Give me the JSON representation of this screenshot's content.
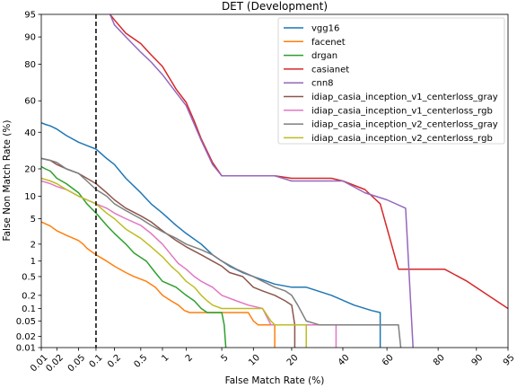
{
  "chart_data": {
    "type": "line",
    "title": "DET (Development)",
    "xlabel": "False Match Rate (%)",
    "ylabel": "False Non Match Rate (%)",
    "x_scale": "probit",
    "y_scale": "probit",
    "xlim": [
      0.01,
      95
    ],
    "ylim": [
      0.01,
      95
    ],
    "x_ticks": [
      0.01,
      0.02,
      0.05,
      0.1,
      0.2,
      0.5,
      1,
      2,
      5,
      10,
      20,
      40,
      60,
      80,
      90,
      95
    ],
    "x_tick_labels": [
      "0.01",
      "0.02",
      "0.05",
      "0.1",
      "0.2",
      "0.5",
      "1",
      "2",
      "5",
      "10",
      "20",
      "40",
      "60",
      "80",
      "90",
      "95"
    ],
    "y_ticks": [
      0.01,
      0.02,
      0.05,
      0.1,
      0.2,
      0.5,
      1,
      2,
      5,
      10,
      20,
      40,
      60,
      80,
      90,
      95
    ],
    "y_tick_labels": [
      "0.01",
      "0.02",
      "0.05",
      "0.1",
      "0.2",
      "0.5",
      "1",
      "2",
      "5",
      "10",
      "20",
      "40",
      "60",
      "80",
      "90",
      "95"
    ],
    "grid": false,
    "legend_position": "top-right",
    "reference_line": {
      "x": 0.1,
      "style": "dashed",
      "color": "#000000"
    },
    "series": [
      {
        "name": "vgg16",
        "color": "#1f77b4",
        "points": [
          [
            0.01,
            46
          ],
          [
            0.012,
            45
          ],
          [
            0.015,
            44
          ],
          [
            0.02,
            42
          ],
          [
            0.03,
            38
          ],
          [
            0.05,
            34
          ],
          [
            0.07,
            32
          ],
          [
            0.1,
            30
          ],
          [
            0.15,
            25
          ],
          [
            0.2,
            22
          ],
          [
            0.3,
            16
          ],
          [
            0.5,
            11
          ],
          [
            0.7,
            8
          ],
          [
            1,
            6
          ],
          [
            1.5,
            4
          ],
          [
            2,
            3
          ],
          [
            3,
            2
          ],
          [
            4,
            1.3
          ],
          [
            6,
            0.8
          ],
          [
            8,
            0.6
          ],
          [
            10,
            0.5
          ],
          [
            15,
            0.35
          ],
          [
            20,
            0.3
          ],
          [
            25,
            0.3
          ],
          [
            35,
            0.2
          ],
          [
            45,
            0.12
          ],
          [
            53,
            0.09
          ],
          [
            57,
            0.08
          ],
          [
            57,
            0.01
          ]
        ]
      },
      {
        "name": "facenet",
        "color": "#ff7f0e",
        "points": [
          [
            0.01,
            4.5
          ],
          [
            0.015,
            3.9
          ],
          [
            0.02,
            3.3
          ],
          [
            0.03,
            2.8
          ],
          [
            0.05,
            2.3
          ],
          [
            0.06,
            2
          ],
          [
            0.07,
            1.7
          ],
          [
            0.1,
            1.3
          ],
          [
            0.15,
            1
          ],
          [
            0.2,
            0.8
          ],
          [
            0.3,
            0.6
          ],
          [
            0.4,
            0.5
          ],
          [
            0.6,
            0.4
          ],
          [
            0.8,
            0.3
          ],
          [
            1,
            0.2
          ],
          [
            1.3,
            0.15
          ],
          [
            1.6,
            0.12
          ],
          [
            1.9,
            0.09
          ],
          [
            2.2,
            0.08
          ],
          [
            5,
            0.08
          ],
          [
            9,
            0.08
          ],
          [
            10,
            0.05
          ],
          [
            11,
            0.04
          ],
          [
            15,
            0.04
          ],
          [
            15,
            0.01
          ]
        ]
      },
      {
        "name": "drgan",
        "color": "#2ca02c",
        "points": [
          [
            0.01,
            21
          ],
          [
            0.012,
            20
          ],
          [
            0.015,
            19
          ],
          [
            0.02,
            16
          ],
          [
            0.03,
            14
          ],
          [
            0.05,
            11
          ],
          [
            0.07,
            8
          ],
          [
            0.1,
            6
          ],
          [
            0.15,
            4
          ],
          [
            0.2,
            3
          ],
          [
            0.3,
            2
          ],
          [
            0.4,
            1.4
          ],
          [
            0.6,
            1
          ],
          [
            0.8,
            0.6
          ],
          [
            1,
            0.4
          ],
          [
            1.5,
            0.3
          ],
          [
            2,
            0.2
          ],
          [
            2.5,
            0.15
          ],
          [
            3,
            0.1
          ],
          [
            3.5,
            0.08
          ],
          [
            5,
            0.08
          ],
          [
            5.3,
            0.04
          ],
          [
            5.5,
            0.01
          ]
        ]
      },
      {
        "name": "casianet",
        "color": "#d62728",
        "points": [
          [
            0.17,
            95
          ],
          [
            0.2,
            94
          ],
          [
            0.3,
            91
          ],
          [
            0.5,
            88
          ],
          [
            0.7,
            84
          ],
          [
            1,
            79
          ],
          [
            1.5,
            67
          ],
          [
            2,
            59
          ],
          [
            2.5,
            47
          ],
          [
            3,
            36
          ],
          [
            4,
            23
          ],
          [
            5,
            17
          ],
          [
            8,
            17
          ],
          [
            15,
            17
          ],
          [
            20,
            16
          ],
          [
            30,
            16
          ],
          [
            35,
            16
          ],
          [
            40,
            15
          ],
          [
            50,
            12
          ],
          [
            57,
            8
          ],
          [
            65,
            0.7
          ],
          [
            75,
            0.7
          ],
          [
            82,
            0.7
          ],
          [
            88,
            0.4
          ],
          [
            95,
            0.1
          ]
        ]
      },
      {
        "name": "cnn8",
        "color": "#9467bd",
        "points": [
          [
            0.17,
            95
          ],
          [
            0.2,
            93
          ],
          [
            0.3,
            90
          ],
          [
            0.5,
            85
          ],
          [
            0.7,
            81
          ],
          [
            1,
            75
          ],
          [
            1.5,
            65
          ],
          [
            2,
            57
          ],
          [
            2.5,
            45
          ],
          [
            3,
            35
          ],
          [
            4,
            22
          ],
          [
            5,
            17
          ],
          [
            8,
            17
          ],
          [
            15,
            17
          ],
          [
            20,
            15
          ],
          [
            30,
            15
          ],
          [
            40,
            15
          ],
          [
            50,
            11
          ],
          [
            60,
            9
          ],
          [
            68,
            7
          ],
          [
            71,
            0.01
          ]
        ]
      },
      {
        "name": "idiap_casia_inception_v1_centerloss_gray",
        "color": "#8c564b",
        "points": [
          [
            0.01,
            25
          ],
          [
            0.015,
            24
          ],
          [
            0.02,
            22
          ],
          [
            0.03,
            20
          ],
          [
            0.05,
            18
          ],
          [
            0.07,
            16
          ],
          [
            0.1,
            14
          ],
          [
            0.15,
            11
          ],
          [
            0.2,
            9
          ],
          [
            0.3,
            7
          ],
          [
            0.5,
            5.5
          ],
          [
            0.7,
            4.5
          ],
          [
            1,
            3.3
          ],
          [
            1.5,
            2.3
          ],
          [
            2,
            1.8
          ],
          [
            3,
            1.3
          ],
          [
            4,
            1
          ],
          [
            5,
            0.8
          ],
          [
            6,
            0.6
          ],
          [
            8,
            0.5
          ],
          [
            10,
            0.3
          ],
          [
            12,
            0.25
          ],
          [
            15,
            0.2
          ],
          [
            18,
            0.15
          ],
          [
            20,
            0.12
          ],
          [
            21,
            0.04
          ],
          [
            21,
            0.01
          ]
        ]
      },
      {
        "name": "idiap_casia_inception_v1_centerloss_rgb",
        "color": "#e377c2",
        "points": [
          [
            0.01,
            15
          ],
          [
            0.015,
            14
          ],
          [
            0.02,
            13
          ],
          [
            0.03,
            12
          ],
          [
            0.05,
            10
          ],
          [
            0.07,
            9
          ],
          [
            0.1,
            8
          ],
          [
            0.15,
            7
          ],
          [
            0.2,
            6
          ],
          [
            0.3,
            5
          ],
          [
            0.5,
            4
          ],
          [
            0.7,
            3
          ],
          [
            1,
            2
          ],
          [
            1.3,
            1.3
          ],
          [
            1.6,
            0.9
          ],
          [
            2,
            0.7
          ],
          [
            2.5,
            0.5
          ],
          [
            3,
            0.4
          ],
          [
            4,
            0.3
          ],
          [
            5,
            0.2
          ],
          [
            7,
            0.15
          ],
          [
            9,
            0.12
          ],
          [
            12,
            0.1
          ],
          [
            14,
            0.04
          ],
          [
            20,
            0.04
          ],
          [
            35,
            0.04
          ],
          [
            37,
            0.04
          ],
          [
            37,
            0.01
          ]
        ]
      },
      {
        "name": "idiap_casia_inception_v2_centerloss_gray",
        "color": "#7f7f7f",
        "points": [
          [
            0.01,
            25
          ],
          [
            0.015,
            24
          ],
          [
            0.02,
            23
          ],
          [
            0.03,
            20
          ],
          [
            0.05,
            18
          ],
          [
            0.07,
            15
          ],
          [
            0.1,
            12
          ],
          [
            0.15,
            10
          ],
          [
            0.2,
            8
          ],
          [
            0.3,
            6.5
          ],
          [
            0.5,
            5
          ],
          [
            0.7,
            4
          ],
          [
            1,
            3.2
          ],
          [
            1.5,
            2.5
          ],
          [
            2,
            2
          ],
          [
            3,
            1.6
          ],
          [
            4,
            1.3
          ],
          [
            5,
            1
          ],
          [
            7,
            0.7
          ],
          [
            10,
            0.5
          ],
          [
            12,
            0.4
          ],
          [
            15,
            0.3
          ],
          [
            18,
            0.25
          ],
          [
            20,
            0.2
          ],
          [
            22,
            0.12
          ],
          [
            25,
            0.05
          ],
          [
            30,
            0.04
          ],
          [
            50,
            0.04
          ],
          [
            60,
            0.04
          ],
          [
            65,
            0.04
          ],
          [
            66,
            0.01
          ]
        ]
      },
      {
        "name": "idiap_casia_inception_v2_centerloss_rgb",
        "color": "#bcbd22",
        "points": [
          [
            0.01,
            16
          ],
          [
            0.015,
            15
          ],
          [
            0.02,
            14
          ],
          [
            0.03,
            12
          ],
          [
            0.05,
            10
          ],
          [
            0.07,
            9
          ],
          [
            0.1,
            8
          ],
          [
            0.15,
            6
          ],
          [
            0.2,
            5
          ],
          [
            0.3,
            3.5
          ],
          [
            0.5,
            2.5
          ],
          [
            0.7,
            1.8
          ],
          [
            1,
            1.2
          ],
          [
            1.3,
            0.8
          ],
          [
            1.6,
            0.6
          ],
          [
            2,
            0.4
          ],
          [
            2.5,
            0.3
          ],
          [
            3,
            0.2
          ],
          [
            3.5,
            0.15
          ],
          [
            4,
            0.12
          ],
          [
            5,
            0.1
          ],
          [
            8,
            0.1
          ],
          [
            12,
            0.1
          ],
          [
            14,
            0.05
          ],
          [
            15,
            0.04
          ],
          [
            22,
            0.04
          ],
          [
            25,
            0.04
          ],
          [
            25,
            0.01
          ]
        ]
      }
    ]
  }
}
